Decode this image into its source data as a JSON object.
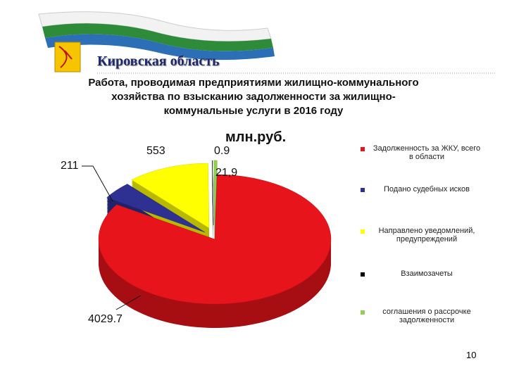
{
  "header": {
    "title": "Кировская область",
    "subtitle": [
      "Работа, проводимая предприятиями жилищно-коммунального",
      "хозяйства по взысканию задолженности за жилищно-",
      "коммунальные услуги в 2016 году"
    ]
  },
  "chart_data": {
    "type": "pie",
    "title": "млн.руб.",
    "categories": [
      "Задолженность за ЖКУ, всего в области",
      "Подано судебных исков",
      "Направлено уведомлений, предупреждений",
      "Взаимозачеты",
      "соглашения о рассрочке задолженности"
    ],
    "values": [
      4029.7,
      211,
      553,
      0.9,
      21.9
    ],
    "value_labels": [
      "4029.7",
      "211",
      "553",
      "0.9",
      "21,9"
    ],
    "colors": [
      "#e8141b",
      "#2e3192",
      "#ffff00",
      "#000000",
      "#92d050"
    ],
    "legend": "right"
  },
  "page_number": "10"
}
